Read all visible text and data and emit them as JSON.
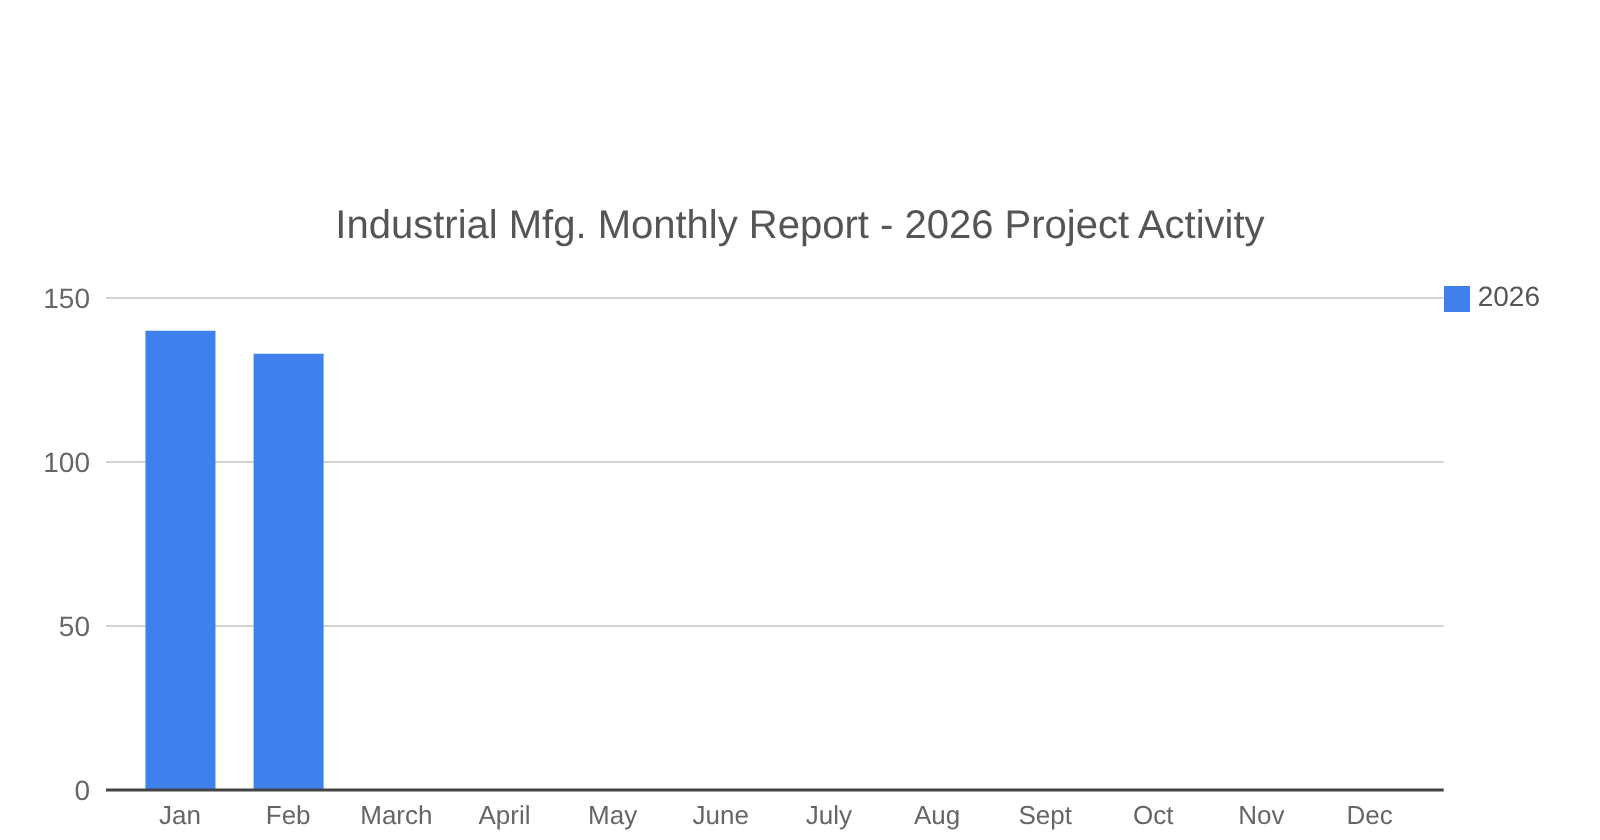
{
  "chart_data": {
    "type": "bar",
    "title": "Industrial Mfg. Monthly Report - 2026 Project Activity",
    "categories": [
      "Jan",
      "Feb",
      "March",
      "April",
      "May",
      "June",
      "July",
      "Aug",
      "Sept",
      "Oct",
      "Nov",
      "Dec"
    ],
    "series": [
      {
        "name": "2026",
        "color": "#3f80ec",
        "values": [
          140,
          133,
          null,
          null,
          null,
          null,
          null,
          null,
          null,
          null,
          null,
          null
        ]
      }
    ],
    "ylim": [
      0,
      150
    ],
    "yticks": [
      0,
      50,
      100,
      150
    ],
    "grid": "y",
    "legend": "top right"
  }
}
